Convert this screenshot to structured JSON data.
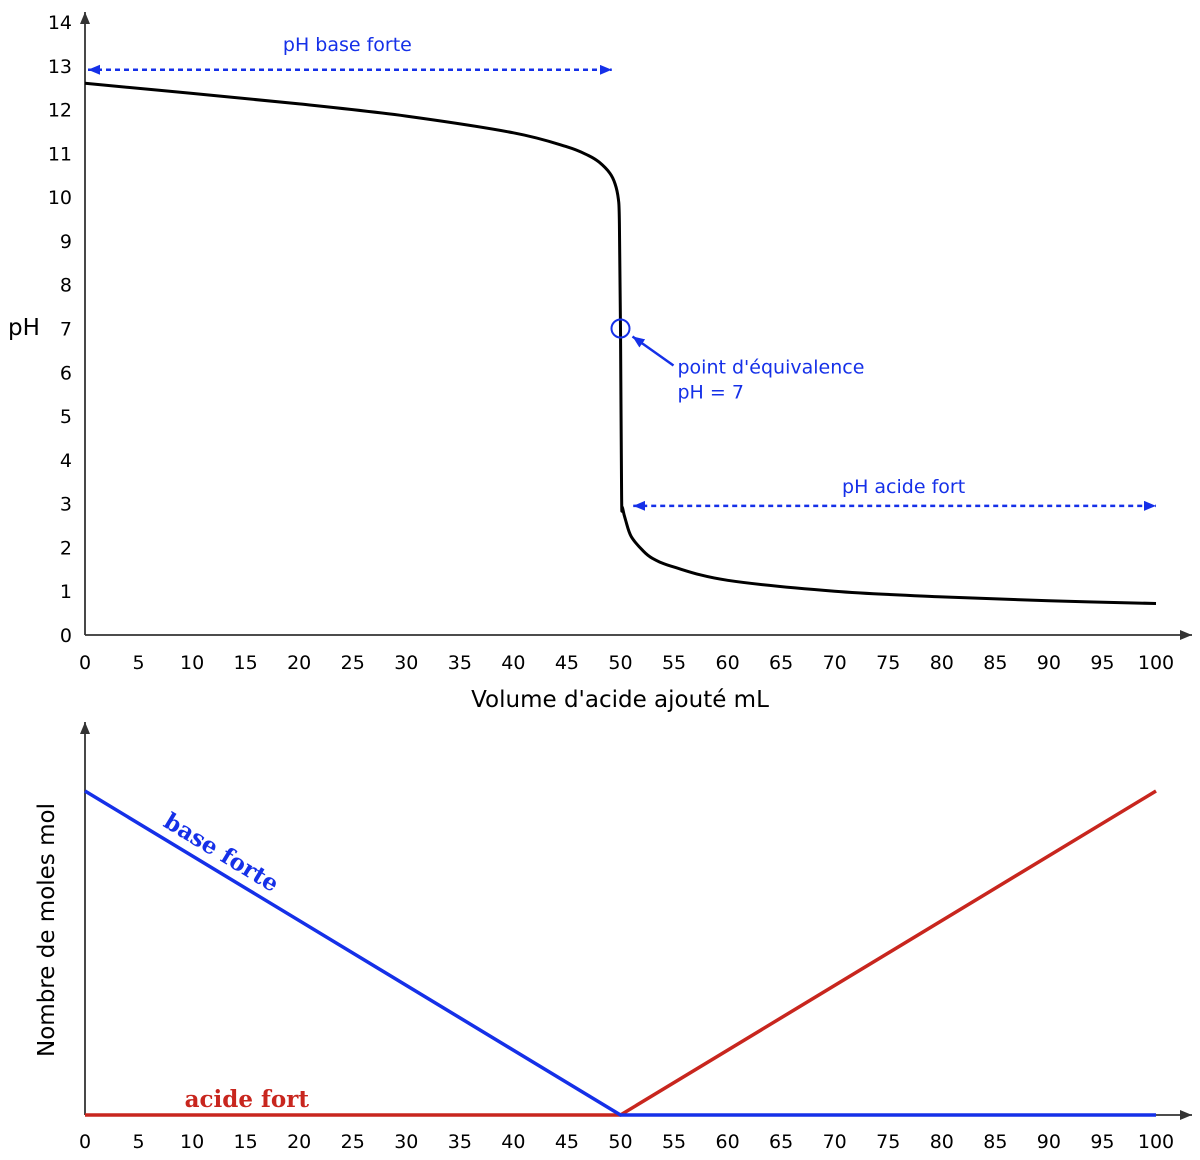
{
  "colors": {
    "axis": "#333333",
    "curve": "#000000",
    "annotation": "#1530e8",
    "base": "#1530e8",
    "acid": "#c8261e"
  },
  "chart_data": [
    {
      "type": "line",
      "xlabel": "Volume d'acide ajouté mL",
      "ylabel": "pH",
      "xlim": [
        0,
        100
      ],
      "ylim": [
        0,
        14
      ],
      "x_ticks": [
        "0",
        "5",
        "10",
        "15",
        "20",
        "25",
        "30",
        "35",
        "40",
        "45",
        "50",
        "55",
        "60",
        "65",
        "70",
        "75",
        "80",
        "85",
        "90",
        "95",
        "100"
      ],
      "y_ticks": [
        "0",
        "1",
        "2",
        "3",
        "4",
        "5",
        "6",
        "7",
        "8",
        "9",
        "10",
        "11",
        "12",
        "13",
        "14"
      ],
      "grid": false,
      "series": [
        {
          "x": [
            0,
            10,
            20,
            30,
            40,
            45,
            47,
            48,
            49,
            49.5,
            49.8,
            49.9,
            50,
            50.1,
            50.2,
            50.5,
            51,
            52,
            53,
            55,
            60,
            70,
            80,
            90,
            100
          ],
          "y": [
            12.6,
            12.37,
            12.13,
            11.85,
            11.47,
            11.15,
            10.95,
            10.8,
            10.55,
            10.3,
            9.95,
            9.4,
            7.0,
            3.2,
            2.9,
            2.6,
            2.25,
            1.95,
            1.75,
            1.55,
            1.25,
            1.0,
            0.87,
            0.78,
            0.72
          ]
        }
      ],
      "equivalence_point": {
        "x": 50,
        "y": 7
      },
      "annotations": {
        "base_range": {
          "label": "pH base forte",
          "from": 0,
          "to": 49,
          "y": 13
        },
        "acid_range": {
          "label": "pH acide fort",
          "from": 51,
          "to": 100,
          "y": 2.95
        },
        "equivalence_label_line1": "point d'équivalence",
        "equivalence_label_line2": "pH = 7"
      }
    },
    {
      "type": "line",
      "xlabel": "",
      "ylabel": "Nombre de moles mol",
      "xlim": [
        0,
        100
      ],
      "ylim": [
        0,
        1.2
      ],
      "x_ticks": [
        "0",
        "5",
        "10",
        "15",
        "20",
        "25",
        "30",
        "35",
        "40",
        "45",
        "50",
        "55",
        "60",
        "65",
        "70",
        "75",
        "80",
        "85",
        "90",
        "95",
        "100"
      ],
      "grid": false,
      "series": [
        {
          "name": "base forte",
          "color": "#1530e8",
          "x": [
            0,
            50,
            100
          ],
          "y": [
            1,
            0,
            0
          ]
        },
        {
          "name": "acide fort",
          "color": "#c8261e",
          "x": [
            0,
            50,
            100
          ],
          "y": [
            0,
            0,
            1
          ]
        }
      ]
    }
  ]
}
